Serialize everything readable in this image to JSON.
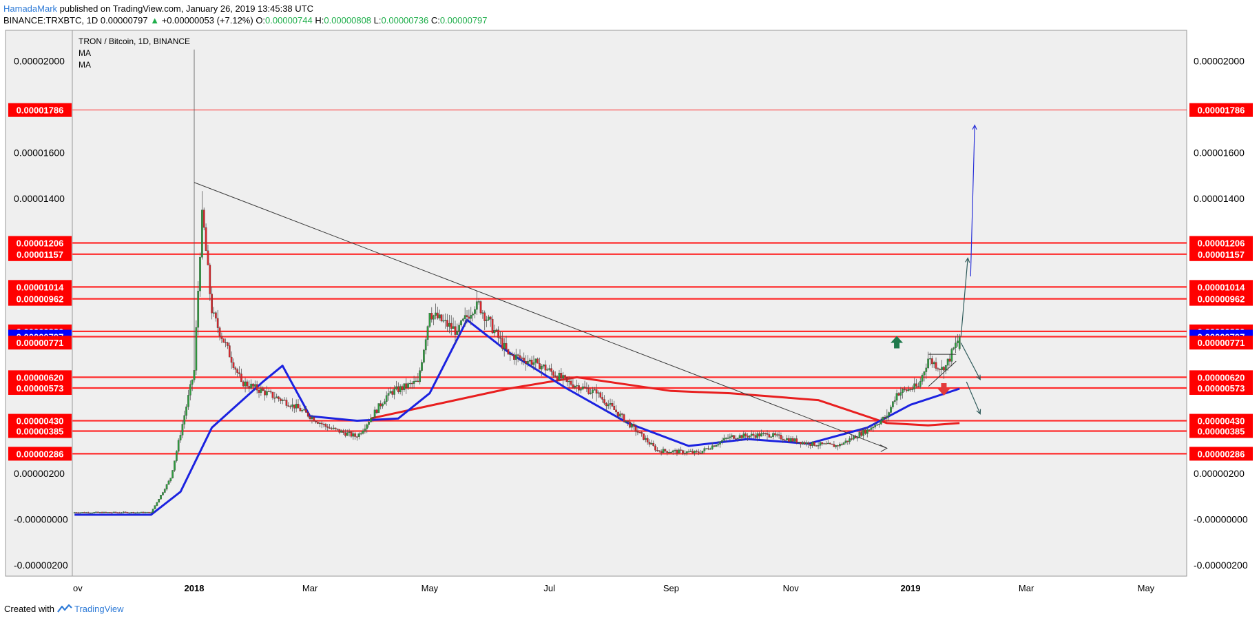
{
  "header": {
    "author": "HamadaMark",
    "published": "published on TradingView.com, January 26, 2019 13:45:38 UTC",
    "symbol": "BINANCE:TRXBTC, 1D",
    "last": "0.00000797",
    "change": "+0.00000053 (+7.12%)",
    "o_label": "O:",
    "o": "0.00000744",
    "h_label": "H:",
    "h": "0.00000808",
    "l_label": "L:",
    "l": "0.00000736",
    "c_label": "C:",
    "c": "0.00000797"
  },
  "legend": {
    "title": "TRON / Bitcoin, 1D, BINANCE",
    "indicators": [
      "MA",
      "MA"
    ]
  },
  "footer": {
    "created_with": "Created with",
    "brand": "TradingView"
  },
  "colors": {
    "up_candle": "#2e9b3e",
    "down_candle": "#d9262b",
    "ma_short": "#1b22e0",
    "ma_long": "#e81f1f",
    "level_line": "#ff2a2a",
    "level_label_bg": "#ff0000",
    "current_price_bg": "#0000ff",
    "trendline": "#3a3a3a",
    "projection_arrow": "#2830d8",
    "up_arrow_marker": "#1f7a4c",
    "down_arrow_marker": "#e23a3a",
    "plot_background": "#efefef"
  },
  "chart_data": {
    "type": "candlestick",
    "title": "TRON / Bitcoin, 1D, BINANCE",
    "x_ticks": [
      "Nov",
      "2018",
      "Mar",
      "May",
      "Jul",
      "Sep",
      "Nov",
      "2019",
      "Mar",
      "May"
    ],
    "x_tick_dates": [
      "2017-11-01",
      "2018-01-01",
      "2018-03-01",
      "2018-05-01",
      "2018-07-01",
      "2018-09-01",
      "2018-11-01",
      "2019-01-01",
      "2019-03-01",
      "2019-05-01"
    ],
    "y_ticks": [
      "0.00002000",
      "0.00001600",
      "0.00001400",
      "0.00000200",
      "-0.00000000",
      "-0.00000200"
    ],
    "y_tick_values": [
      2e-05,
      1.6e-05,
      1.4e-05,
      2e-06,
      0,
      -2e-06
    ],
    "ylim": [
      -2.5e-06,
      2.15e-05
    ],
    "grid": false,
    "levels": [
      {
        "label": "0.00001786",
        "value": 1.786e-05,
        "style": "thin"
      },
      {
        "label": "0.00001206",
        "value": 1.206e-05,
        "style": "thick"
      },
      {
        "label": "0.00001157",
        "value": 1.157e-05,
        "style": "thick"
      },
      {
        "label": "0.00001014",
        "value": 1.014e-05,
        "style": "thick"
      },
      {
        "label": "0.00000962",
        "value": 9.62e-06,
        "style": "thick"
      },
      {
        "label": "0.00000820",
        "value": 8.2e-06,
        "style": "thick"
      },
      {
        "label": "0.00000797",
        "value": 7.97e-06,
        "style": "current"
      },
      {
        "label": "0.00000771",
        "value": 7.71e-06,
        "style": "label-only"
      },
      {
        "label": "0.00000620",
        "value": 6.2e-06,
        "style": "thick"
      },
      {
        "label": "0.00000573",
        "value": 5.73e-06,
        "style": "thick"
      },
      {
        "label": "0.00000430",
        "value": 4.3e-06,
        "style": "thick"
      },
      {
        "label": "0.00000385",
        "value": 3.85e-06,
        "style": "thick"
      },
      {
        "label": "0.00000286",
        "value": 2.86e-06,
        "style": "thick"
      }
    ],
    "key_candles": [
      {
        "date": "2017-11-01",
        "close": 3e-07
      },
      {
        "date": "2017-12-10",
        "close": 3e-07
      },
      {
        "date": "2017-12-20",
        "close": 1.8e-06
      },
      {
        "date": "2018-01-01",
        "close": 6.5e-06,
        "high": 2.05e-05
      },
      {
        "date": "2018-01-05",
        "close": 1.35e-05
      },
      {
        "date": "2018-01-10",
        "close": 9e-06
      },
      {
        "date": "2018-01-25",
        "close": 6e-06
      },
      {
        "date": "2018-02-20",
        "close": 5e-06
      },
      {
        "date": "2018-03-10",
        "close": 4e-06
      },
      {
        "date": "2018-03-25",
        "close": 3.6e-06
      },
      {
        "date": "2018-04-10",
        "close": 5.5e-06
      },
      {
        "date": "2018-04-25",
        "close": 6e-06
      },
      {
        "date": "2018-05-01",
        "close": 9e-06
      },
      {
        "date": "2018-05-15",
        "close": 8.2e-06
      },
      {
        "date": "2018-05-25",
        "close": 9.5e-06
      },
      {
        "date": "2018-06-10",
        "close": 7.2e-06
      },
      {
        "date": "2018-06-25",
        "close": 6.8e-06
      },
      {
        "date": "2018-07-10",
        "close": 6e-06
      },
      {
        "date": "2018-07-25",
        "close": 5.5e-06
      },
      {
        "date": "2018-08-15",
        "close": 3.8e-06
      },
      {
        "date": "2018-08-25",
        "close": 3e-06
      },
      {
        "date": "2018-09-15",
        "close": 2.9e-06
      },
      {
        "date": "2018-10-01",
        "close": 3.6e-06
      },
      {
        "date": "2018-10-20",
        "close": 3.7e-06
      },
      {
        "date": "2018-11-10",
        "close": 3.3e-06
      },
      {
        "date": "2018-11-25",
        "close": 3.2e-06
      },
      {
        "date": "2018-12-10",
        "close": 3.9e-06
      },
      {
        "date": "2018-12-20",
        "close": 4.5e-06
      },
      {
        "date": "2018-12-25",
        "close": 5.5e-06
      },
      {
        "date": "2019-01-05",
        "close": 5.8e-06
      },
      {
        "date": "2019-01-10",
        "close": 7e-06
      },
      {
        "date": "2019-01-18",
        "close": 6.5e-06
      },
      {
        "date": "2019-01-26",
        "close": 7.97e-06,
        "high": 8.08e-06,
        "low": 7.36e-06,
        "open": 7.44e-06
      }
    ],
    "ma_short": [
      {
        "date": "2017-11-01",
        "value": 2e-07
      },
      {
        "date": "2017-12-10",
        "value": 2e-07
      },
      {
        "date": "2017-12-25",
        "value": 1.2e-06
      },
      {
        "date": "2018-01-10",
        "value": 4e-06
      },
      {
        "date": "2018-02-05",
        "value": 6e-06
      },
      {
        "date": "2018-02-15",
        "value": 6.7e-06
      },
      {
        "date": "2018-03-01",
        "value": 4.5e-06
      },
      {
        "date": "2018-03-25",
        "value": 4.3e-06
      },
      {
        "date": "2018-04-15",
        "value": 4.4e-06
      },
      {
        "date": "2018-05-01",
        "value": 5.5e-06
      },
      {
        "date": "2018-05-20",
        "value": 8.7e-06
      },
      {
        "date": "2018-06-10",
        "value": 7.3e-06
      },
      {
        "date": "2018-07-10",
        "value": 5.7e-06
      },
      {
        "date": "2018-08-10",
        "value": 4.2e-06
      },
      {
        "date": "2018-09-10",
        "value": 3.2e-06
      },
      {
        "date": "2018-10-10",
        "value": 3.5e-06
      },
      {
        "date": "2018-11-10",
        "value": 3.3e-06
      },
      {
        "date": "2018-12-10",
        "value": 4e-06
      },
      {
        "date": "2019-01-01",
        "value": 5e-06
      },
      {
        "date": "2019-01-26",
        "value": 5.7e-06
      }
    ],
    "ma_long": [
      {
        "date": "2018-04-01",
        "value": 4.4e-06
      },
      {
        "date": "2018-06-10",
        "value": 5.7e-06
      },
      {
        "date": "2018-07-15",
        "value": 6.2e-06
      },
      {
        "date": "2018-09-01",
        "value": 5.6e-06
      },
      {
        "date": "2018-10-01",
        "value": 5.5e-06
      },
      {
        "date": "2018-11-15",
        "value": 5.2e-06
      },
      {
        "date": "2018-12-20",
        "value": 4.2e-06
      },
      {
        "date": "2019-01-10",
        "value": 4.1e-06
      },
      {
        "date": "2019-01-26",
        "value": 4.2e-06
      }
    ],
    "annotations": [
      {
        "type": "trendline",
        "from": [
          "2018-01-01",
          1.47e-05
        ],
        "to": [
          "2018-12-20",
          3.1e-06
        ]
      },
      {
        "type": "up-arrow",
        "date": "2018-12-25",
        "value": 7.7e-06
      },
      {
        "type": "down-arrow",
        "date": "2019-01-18",
        "value": 5.7e-06
      }
    ]
  }
}
